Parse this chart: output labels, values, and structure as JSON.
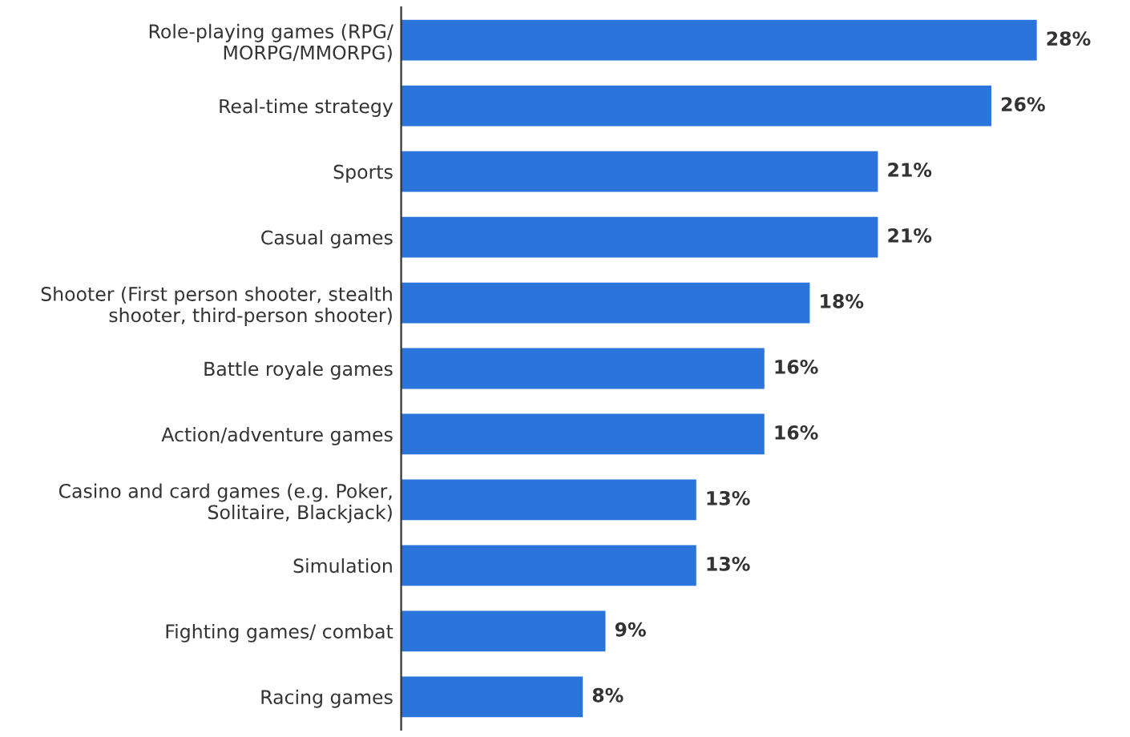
{
  "chart_data": {
    "type": "bar",
    "orientation": "horizontal",
    "categories": [
      "Role-playing games (RPG/\nMORPG/MMORPG)",
      "Real-time strategy",
      "Sports",
      "Casual games",
      "Shooter (First person shooter, stealth\nshooter, third-person shooter)",
      "Battle royale games",
      "Action/adventure games",
      "Casino and card games (e.g. Poker,\nSolitaire, Blackjack)",
      "Simulation",
      "Fighting games/ combat",
      "Racing games"
    ],
    "values": [
      28,
      26,
      21,
      21,
      18,
      16,
      16,
      13,
      13,
      9,
      8
    ],
    "value_labels": [
      "28%",
      "26%",
      "21%",
      "21%",
      "18%",
      "16%",
      "16%",
      "13%",
      "13%",
      "9%",
      "8%"
    ],
    "color": "#2b74dc"
  }
}
